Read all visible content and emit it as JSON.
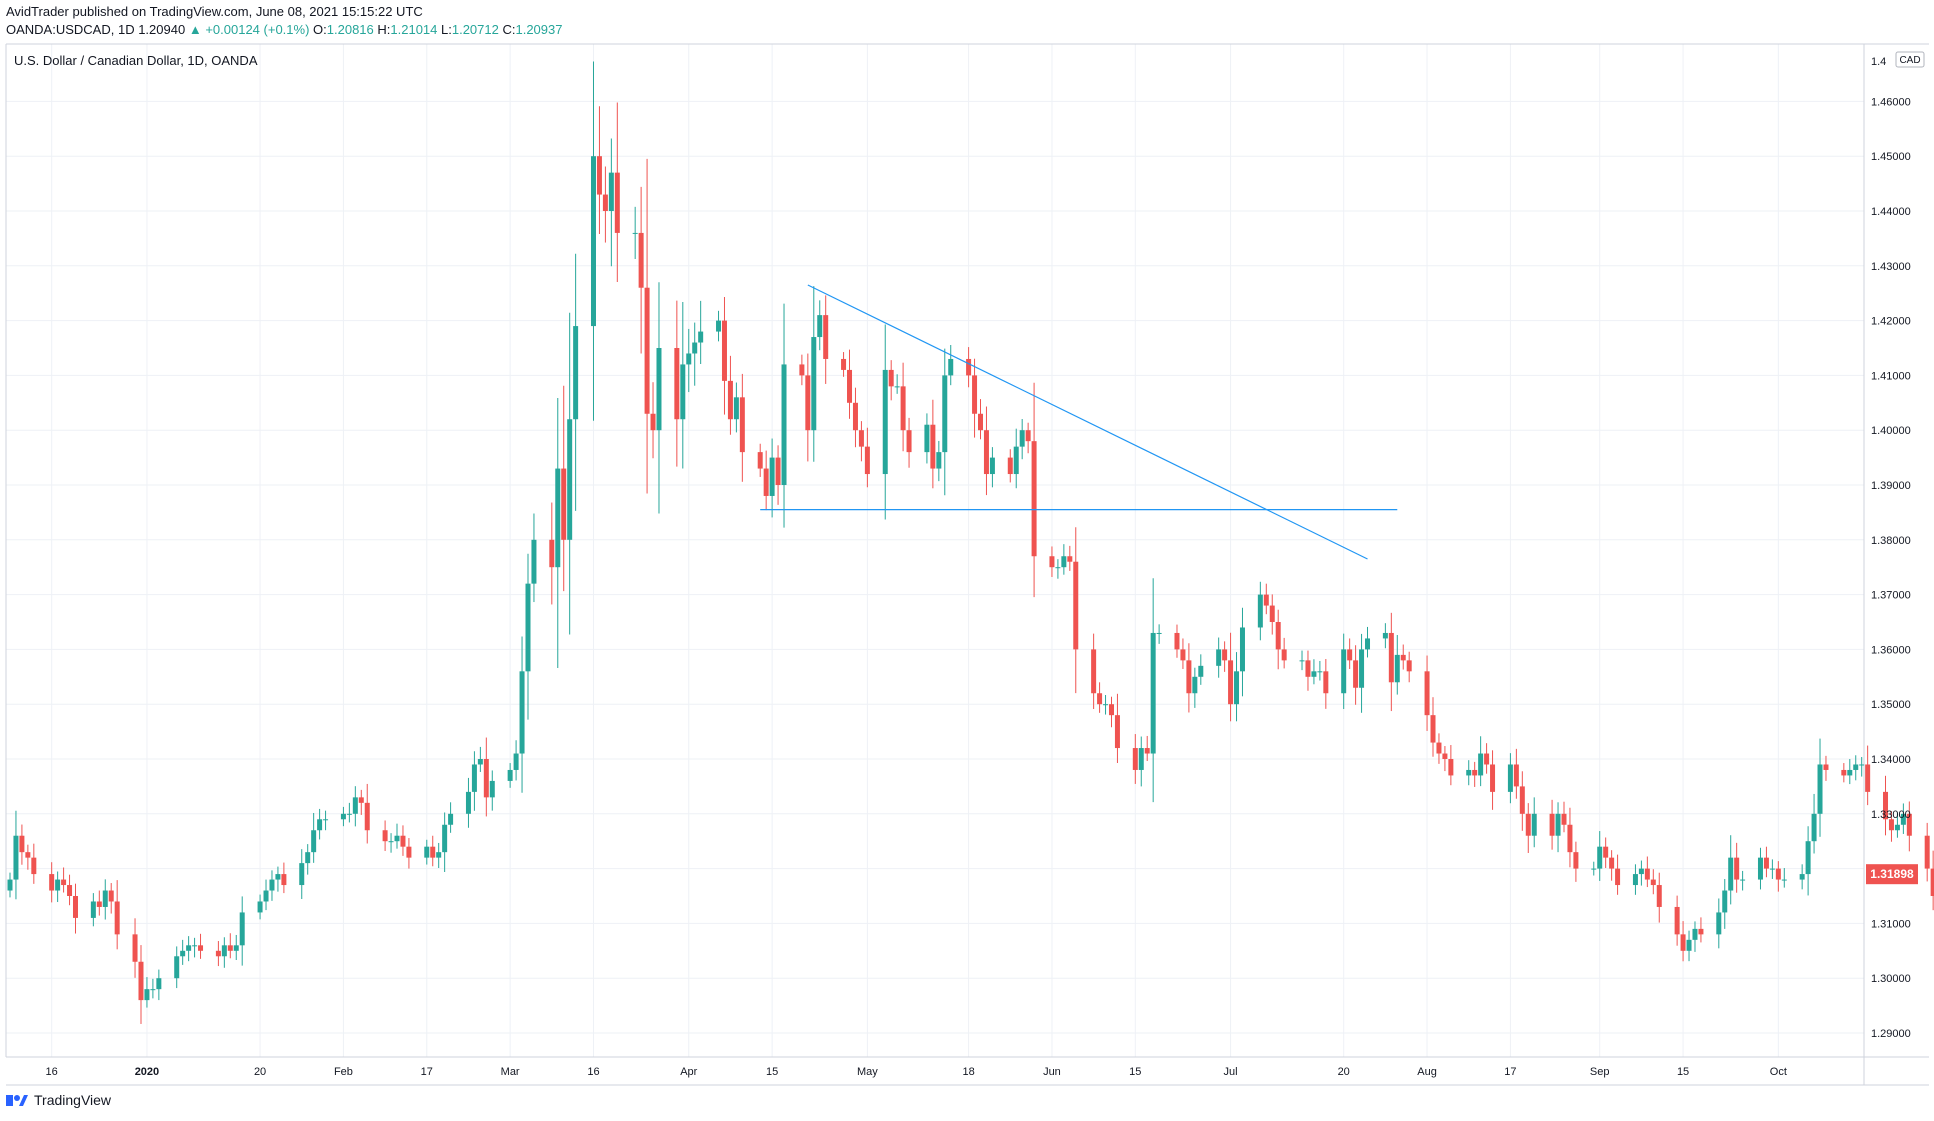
{
  "header": {
    "publisher": "AvidTrader",
    "published_text": "published on TradingView.com, June 08, 2021 15:15:22 UTC",
    "symbol": "OANDA:USDCAD, 1D",
    "last": "1.20940",
    "change": "+0.00124 (+0.1%)",
    "o_label": "O:",
    "o_value": "1.20816",
    "h_label": "H:",
    "h_value": "1.21014",
    "l_label": "L:",
    "l_value": "1.20712",
    "c_label": "C:",
    "c_value": "1.20937"
  },
  "chart_title": "U.S. Dollar / Canadian Dollar, 1D, OANDA",
  "currency_badge": "CAD",
  "footer": {
    "brand": "TradingView"
  },
  "colors": {
    "up": "#26a69a",
    "down": "#ef5350",
    "trendline": "#2196f3",
    "grid": "#eef1f6",
    "price_badge": "#ef5350"
  },
  "chart_data": {
    "type": "candlestick",
    "title": "U.S. Dollar / Canadian Dollar, 1D, OANDA",
    "y_axis": {
      "ylim": [
        1.288,
        1.467
      ],
      "ticks": [
        1.29,
        1.3,
        1.31,
        1.32,
        1.33,
        1.34,
        1.35,
        1.36,
        1.37,
        1.38,
        1.39,
        1.4,
        1.41,
        1.42,
        1.43,
        1.44,
        1.45,
        1.46
      ],
      "tick_labels": [
        "1.29000",
        "1.30000",
        "1.31000",
        "1.32000",
        "1.33000",
        "1.34000",
        "1.35000",
        "1.36000",
        "1.37000",
        "1.38000",
        "1.39000",
        "1.40000",
        "1.41000",
        "1.42000",
        "1.43000",
        "1.44000",
        "1.45000",
        "1.46000"
      ],
      "top_label": "1.4"
    },
    "x_axis": {
      "labels": [
        {
          "label": "16",
          "date": "2019-12-16"
        },
        {
          "label": "2020",
          "date": "2020-01-01"
        },
        {
          "label": "20",
          "date": "2020-01-20"
        },
        {
          "label": "Feb",
          "date": "2020-02-03"
        },
        {
          "label": "17",
          "date": "2020-02-17"
        },
        {
          "label": "Mar",
          "date": "2020-03-02"
        },
        {
          "label": "16",
          "date": "2020-03-16"
        },
        {
          "label": "Apr",
          "date": "2020-04-01"
        },
        {
          "label": "15",
          "date": "2020-04-15"
        },
        {
          "label": "May",
          "date": "2020-05-01"
        },
        {
          "label": "18",
          "date": "2020-05-18"
        },
        {
          "label": "Jun",
          "date": "2020-06-01"
        },
        {
          "label": "15",
          "date": "2020-06-15"
        },
        {
          "label": "Jul",
          "date": "2020-07-01"
        },
        {
          "label": "20",
          "date": "2020-07-20"
        },
        {
          "label": "Aug",
          "date": "2020-08-03"
        },
        {
          "label": "17",
          "date": "2020-08-17"
        },
        {
          "label": "Sep",
          "date": "2020-09-01"
        },
        {
          "label": "15",
          "date": "2020-09-15"
        },
        {
          "label": "Oct",
          "date": "2020-10-01"
        }
      ]
    },
    "closes": [
      1.318,
      1.326,
      1.323,
      1.322,
      1.319,
      1.316,
      1.318,
      1.317,
      1.315,
      1.311,
      1.314,
      1.313,
      1.316,
      1.314,
      1.308,
      1.303,
      1.296,
      1.298,
      1.298,
      1.3,
      1.304,
      1.305,
      1.306,
      1.306,
      1.305,
      1.304,
      1.306,
      1.305,
      1.306,
      1.312,
      1.314,
      1.316,
      1.318,
      1.319,
      1.317,
      1.321,
      1.323,
      1.327,
      1.329,
      1.329,
      1.33,
      1.33,
      1.333,
      1.332,
      1.327,
      1.325,
      1.325,
      1.326,
      1.324,
      1.322,
      1.324,
      1.322,
      1.323,
      1.328,
      1.33,
      1.334,
      1.339,
      1.34,
      1.333,
      1.336,
      1.338,
      1.341,
      1.356,
      1.372,
      1.38,
      1.375,
      1.393,
      1.38,
      1.402,
      1.419,
      1.45,
      1.443,
      1.44,
      1.447,
      1.436,
      1.436,
      1.426,
      1.403,
      1.4,
      1.415,
      1.402,
      1.412,
      1.414,
      1.416,
      1.418,
      1.42,
      1.409,
      1.402,
      1.406,
      1.396,
      1.393,
      1.388,
      1.395,
      1.39,
      1.412,
      1.41,
      1.4,
      1.417,
      1.421,
      1.413,
      1.411,
      1.405,
      1.4,
      1.397,
      1.392,
      1.411,
      1.408,
      1.408,
      1.4,
      1.396,
      1.401,
      1.393,
      1.396,
      1.41,
      1.413,
      1.41,
      1.403,
      1.4,
      1.392,
      1.395,
      1.392,
      1.397,
      1.4,
      1.398,
      1.377,
      1.375,
      1.375,
      1.377,
      1.376,
      1.36,
      1.352,
      1.35,
      1.35,
      1.348,
      1.342,
      1.338,
      1.342,
      1.341,
      1.363,
      1.363,
      1.36,
      1.358,
      1.352,
      1.355,
      1.357,
      1.36,
      1.358,
      1.35,
      1.356,
      1.364,
      1.37,
      1.368,
      1.365,
      1.36,
      1.358,
      1.358,
      1.355,
      1.356,
      1.356,
      1.352,
      1.36,
      1.358,
      1.353,
      1.36,
      1.362,
      1.363,
      1.354,
      1.359,
      1.358,
      1.356,
      1.348,
      1.343,
      1.341,
      1.34,
      1.337,
      1.338,
      1.337,
      1.341,
      1.339,
      1.334,
      1.339,
      1.335,
      1.33,
      1.326,
      1.33,
      1.326,
      1.33,
      1.328,
      1.323,
      1.32,
      1.32,
      1.324,
      1.322,
      1.32,
      1.317,
      1.319,
      1.32,
      1.318,
      1.317,
      1.313,
      1.308,
      1.305,
      1.307,
      1.309,
      1.308,
      1.312,
      1.316,
      1.322,
      1.318,
      1.318,
      1.322,
      1.32,
      1.32,
      1.318,
      1.318,
      1.319,
      1.325,
      1.33,
      1.339,
      1.338,
      1.337,
      1.338,
      1.339,
      1.339,
      1.334,
      1.329,
      1.327,
      1.328,
      1.33,
      1.326,
      1.32,
      1.315,
      1.313,
      1.316,
      1.318,
      1.32,
      1.319,
      1.319
    ],
    "trendlines": [
      {
        "type": "descending",
        "from": {
          "date": "2020-04-21",
          "price": 1.4265
        },
        "to": {
          "date": "2020-07-24",
          "price": 1.3765
        }
      },
      {
        "type": "horizontal-support",
        "from": {
          "date": "2020-04-13",
          "price": 1.3855
        },
        "to": {
          "date": "2020-07-29",
          "price": 1.3855
        }
      }
    ],
    "last_price": {
      "value": 1.31898,
      "label": "1.31898"
    }
  }
}
